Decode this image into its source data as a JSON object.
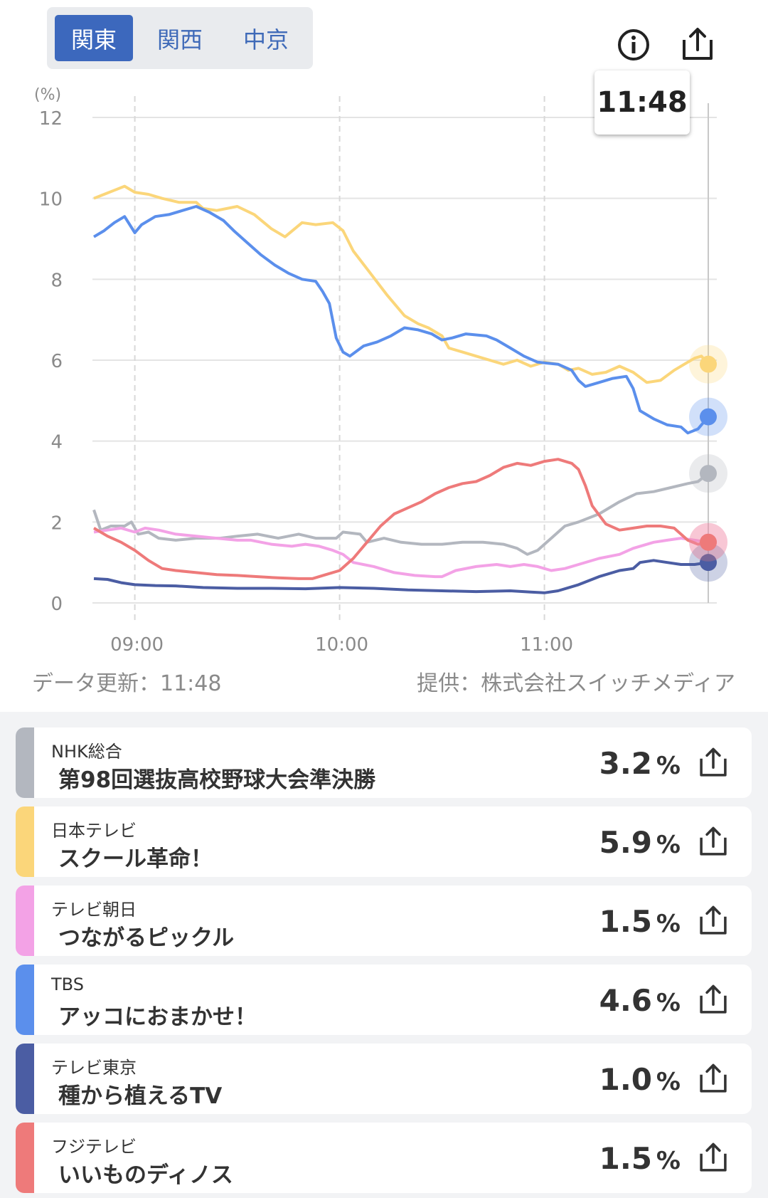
{
  "tabs": [
    "関東",
    "関西",
    "中京"
  ],
  "active_tab": 0,
  "tooltip_time": "11:48",
  "update_note": "データ更新：11:48",
  "provider_note": "提供：株式会社スイッチメディア",
  "icons": {
    "info": "info-icon",
    "share": "share-icon"
  },
  "chart_data": {
    "type": "line",
    "ylabel": "(%)",
    "ylim": [
      0,
      12
    ],
    "yticks": [
      "0",
      "2",
      "4",
      "6",
      "8",
      "10",
      "12"
    ],
    "xticks": [
      {
        "t": 60,
        "label": "09:00"
      },
      {
        "t": 120,
        "label": "10:00"
      },
      {
        "t": 180,
        "label": "11:00"
      }
    ],
    "xlim_minutes_from_0800": [
      48,
      228
    ],
    "cursor_minute": 228,
    "grid": true,
    "series": [
      {
        "name": "NHK総合",
        "color": "#b3b7bf",
        "points": [
          [
            48,
            2.3
          ],
          [
            50,
            1.8
          ],
          [
            53,
            1.9
          ],
          [
            57,
            1.9
          ],
          [
            59,
            2.0
          ],
          [
            61,
            1.7
          ],
          [
            64,
            1.75
          ],
          [
            67,
            1.6
          ],
          [
            72,
            1.55
          ],
          [
            78,
            1.6
          ],
          [
            85,
            1.6
          ],
          [
            90,
            1.65
          ],
          [
            96,
            1.7
          ],
          [
            102,
            1.6
          ],
          [
            108,
            1.7
          ],
          [
            113,
            1.6
          ],
          [
            119,
            1.6
          ],
          [
            121,
            1.75
          ],
          [
            126,
            1.7
          ],
          [
            128,
            1.5
          ],
          [
            133,
            1.6
          ],
          [
            138,
            1.5
          ],
          [
            144,
            1.45
          ],
          [
            150,
            1.45
          ],
          [
            156,
            1.5
          ],
          [
            162,
            1.5
          ],
          [
            168,
            1.45
          ],
          [
            172,
            1.35
          ],
          [
            175,
            1.2
          ],
          [
            178,
            1.3
          ],
          [
            182,
            1.6
          ],
          [
            186,
            1.9
          ],
          [
            190,
            2.0
          ],
          [
            196,
            2.2
          ],
          [
            202,
            2.5
          ],
          [
            207,
            2.7
          ],
          [
            212,
            2.75
          ],
          [
            217,
            2.85
          ],
          [
            222,
            2.95
          ],
          [
            225,
            3.0
          ],
          [
            228,
            3.2
          ]
        ]
      },
      {
        "name": "日本テレビ",
        "color": "#fbd67a",
        "points": [
          [
            48,
            10.0
          ],
          [
            51,
            10.1
          ],
          [
            54,
            10.2
          ],
          [
            57,
            10.3
          ],
          [
            60,
            10.15
          ],
          [
            64,
            10.1
          ],
          [
            68,
            10.0
          ],
          [
            73,
            9.9
          ],
          [
            78,
            9.9
          ],
          [
            80,
            9.75
          ],
          [
            84,
            9.7
          ],
          [
            90,
            9.8
          ],
          [
            95,
            9.6
          ],
          [
            100,
            9.25
          ],
          [
            104,
            9.05
          ],
          [
            109,
            9.4
          ],
          [
            113,
            9.35
          ],
          [
            118,
            9.4
          ],
          [
            121,
            9.2
          ],
          [
            124,
            8.7
          ],
          [
            129,
            8.15
          ],
          [
            134,
            7.6
          ],
          [
            139,
            7.1
          ],
          [
            143,
            6.9
          ],
          [
            146,
            6.8
          ],
          [
            150,
            6.6
          ],
          [
            152,
            6.3
          ],
          [
            156,
            6.2
          ],
          [
            162,
            6.05
          ],
          [
            168,
            5.9
          ],
          [
            172,
            6.0
          ],
          [
            176,
            5.85
          ],
          [
            180,
            5.95
          ],
          [
            184,
            5.9
          ],
          [
            187,
            5.75
          ],
          [
            190,
            5.8
          ],
          [
            194,
            5.65
          ],
          [
            198,
            5.7
          ],
          [
            202,
            5.85
          ],
          [
            206,
            5.7
          ],
          [
            210,
            5.45
          ],
          [
            214,
            5.5
          ],
          [
            218,
            5.75
          ],
          [
            222,
            5.95
          ],
          [
            224,
            6.05
          ],
          [
            226,
            6.1
          ],
          [
            228,
            5.9
          ]
        ]
      },
      {
        "name": "テレビ朝日",
        "color": "#f3a2e6",
        "points": [
          [
            48,
            1.75
          ],
          [
            52,
            1.8
          ],
          [
            56,
            1.85
          ],
          [
            60,
            1.75
          ],
          [
            63,
            1.85
          ],
          [
            67,
            1.8
          ],
          [
            72,
            1.7
          ],
          [
            78,
            1.65
          ],
          [
            84,
            1.6
          ],
          [
            90,
            1.55
          ],
          [
            94,
            1.55
          ],
          [
            100,
            1.45
          ],
          [
            106,
            1.4
          ],
          [
            110,
            1.45
          ],
          [
            114,
            1.4
          ],
          [
            118,
            1.3
          ],
          [
            121,
            1.2
          ],
          [
            124,
            1.0
          ],
          [
            130,
            0.9
          ],
          [
            136,
            0.75
          ],
          [
            142,
            0.68
          ],
          [
            148,
            0.65
          ],
          [
            150,
            0.65
          ],
          [
            154,
            0.8
          ],
          [
            160,
            0.9
          ],
          [
            166,
            0.95
          ],
          [
            170,
            0.9
          ],
          [
            174,
            0.95
          ],
          [
            178,
            0.9
          ],
          [
            182,
            0.8
          ],
          [
            186,
            0.85
          ],
          [
            190,
            0.95
          ],
          [
            196,
            1.1
          ],
          [
            202,
            1.2
          ],
          [
            206,
            1.35
          ],
          [
            212,
            1.5
          ],
          [
            216,
            1.55
          ],
          [
            220,
            1.6
          ],
          [
            224,
            1.55
          ],
          [
            228,
            1.5
          ]
        ]
      },
      {
        "name": "TBS",
        "color": "#5b8fec",
        "points": [
          [
            48,
            9.05
          ],
          [
            51,
            9.2
          ],
          [
            54,
            9.4
          ],
          [
            57,
            9.55
          ],
          [
            60,
            9.15
          ],
          [
            62,
            9.35
          ],
          [
            66,
            9.55
          ],
          [
            70,
            9.6
          ],
          [
            74,
            9.7
          ],
          [
            78,
            9.8
          ],
          [
            82,
            9.65
          ],
          [
            86,
            9.45
          ],
          [
            89,
            9.2
          ],
          [
            93,
            8.9
          ],
          [
            97,
            8.6
          ],
          [
            101,
            8.35
          ],
          [
            105,
            8.15
          ],
          [
            109,
            8.0
          ],
          [
            113,
            7.95
          ],
          [
            115,
            7.7
          ],
          [
            117,
            7.4
          ],
          [
            119,
            6.55
          ],
          [
            121,
            6.2
          ],
          [
            123,
            6.1
          ],
          [
            127,
            6.35
          ],
          [
            131,
            6.45
          ],
          [
            135,
            6.6
          ],
          [
            139,
            6.8
          ],
          [
            143,
            6.75
          ],
          [
            147,
            6.65
          ],
          [
            150,
            6.5
          ],
          [
            153,
            6.55
          ],
          [
            157,
            6.65
          ],
          [
            163,
            6.6
          ],
          [
            166,
            6.5
          ],
          [
            170,
            6.3
          ],
          [
            174,
            6.1
          ],
          [
            178,
            5.95
          ],
          [
            184,
            5.9
          ],
          [
            188,
            5.75
          ],
          [
            190,
            5.5
          ],
          [
            192,
            5.35
          ],
          [
            196,
            5.45
          ],
          [
            200,
            5.55
          ],
          [
            204,
            5.6
          ],
          [
            206,
            5.3
          ],
          [
            208,
            4.75
          ],
          [
            212,
            4.55
          ],
          [
            216,
            4.4
          ],
          [
            220,
            4.35
          ],
          [
            222,
            4.2
          ],
          [
            225,
            4.3
          ],
          [
            228,
            4.6
          ]
        ]
      },
      {
        "name": "テレビ東京",
        "color": "#4b5da3",
        "points": [
          [
            48,
            0.6
          ],
          [
            52,
            0.58
          ],
          [
            56,
            0.5
          ],
          [
            60,
            0.45
          ],
          [
            66,
            0.43
          ],
          [
            72,
            0.42
          ],
          [
            80,
            0.38
          ],
          [
            90,
            0.36
          ],
          [
            100,
            0.36
          ],
          [
            110,
            0.35
          ],
          [
            120,
            0.38
          ],
          [
            130,
            0.36
          ],
          [
            140,
            0.32
          ],
          [
            150,
            0.3
          ],
          [
            160,
            0.28
          ],
          [
            170,
            0.3
          ],
          [
            176,
            0.27
          ],
          [
            180,
            0.25
          ],
          [
            184,
            0.3
          ],
          [
            190,
            0.45
          ],
          [
            196,
            0.65
          ],
          [
            202,
            0.8
          ],
          [
            206,
            0.85
          ],
          [
            208,
            1.0
          ],
          [
            212,
            1.05
          ],
          [
            216,
            1.0
          ],
          [
            220,
            0.95
          ],
          [
            224,
            0.95
          ],
          [
            228,
            1.0
          ]
        ]
      },
      {
        "name": "フジテレビ",
        "color": "#ee7a7a",
        "points": [
          [
            48,
            1.85
          ],
          [
            52,
            1.65
          ],
          [
            56,
            1.5
          ],
          [
            60,
            1.3
          ],
          [
            64,
            1.05
          ],
          [
            68,
            0.85
          ],
          [
            72,
            0.8
          ],
          [
            78,
            0.75
          ],
          [
            84,
            0.7
          ],
          [
            90,
            0.68
          ],
          [
            96,
            0.65
          ],
          [
            102,
            0.62
          ],
          [
            108,
            0.6
          ],
          [
            112,
            0.6
          ],
          [
            116,
            0.7
          ],
          [
            120,
            0.8
          ],
          [
            124,
            1.1
          ],
          [
            128,
            1.5
          ],
          [
            132,
            1.9
          ],
          [
            136,
            2.2
          ],
          [
            140,
            2.35
          ],
          [
            144,
            2.5
          ],
          [
            148,
            2.7
          ],
          [
            152,
            2.85
          ],
          [
            156,
            2.95
          ],
          [
            160,
            3.0
          ],
          [
            164,
            3.15
          ],
          [
            168,
            3.35
          ],
          [
            172,
            3.45
          ],
          [
            176,
            3.4
          ],
          [
            180,
            3.5
          ],
          [
            184,
            3.55
          ],
          [
            188,
            3.45
          ],
          [
            190,
            3.3
          ],
          [
            192,
            2.9
          ],
          [
            194,
            2.4
          ],
          [
            198,
            1.95
          ],
          [
            202,
            1.8
          ],
          [
            206,
            1.85
          ],
          [
            210,
            1.9
          ],
          [
            214,
            1.9
          ],
          [
            218,
            1.85
          ],
          [
            222,
            1.55
          ],
          [
            225,
            1.45
          ],
          [
            228,
            1.5
          ]
        ]
      }
    ]
  },
  "channels": [
    {
      "station": "NHK総合",
      "program": "第98回選抜高校野球大会準決勝",
      "value": "3.2",
      "unit": "%",
      "color": "#b3b7bf"
    },
    {
      "station": "日本テレビ",
      "program": "スクール革命！",
      "value": "5.9",
      "unit": "%",
      "color": "#fbd67a"
    },
    {
      "station": "テレビ朝日",
      "program": "つながるピックル",
      "value": "1.5",
      "unit": "%",
      "color": "#f3a2e6"
    },
    {
      "station": "TBS",
      "program": "アッコにおまかせ！",
      "value": "4.6",
      "unit": "%",
      "color": "#5b8fec"
    },
    {
      "station": "テレビ東京",
      "program": "種から植えるTV",
      "value": "1.0",
      "unit": "%",
      "color": "#4b5da3"
    },
    {
      "station": "フジテレビ",
      "program": "いいものディノス",
      "value": "1.5",
      "unit": "%",
      "color": "#ee7a7a"
    }
  ]
}
